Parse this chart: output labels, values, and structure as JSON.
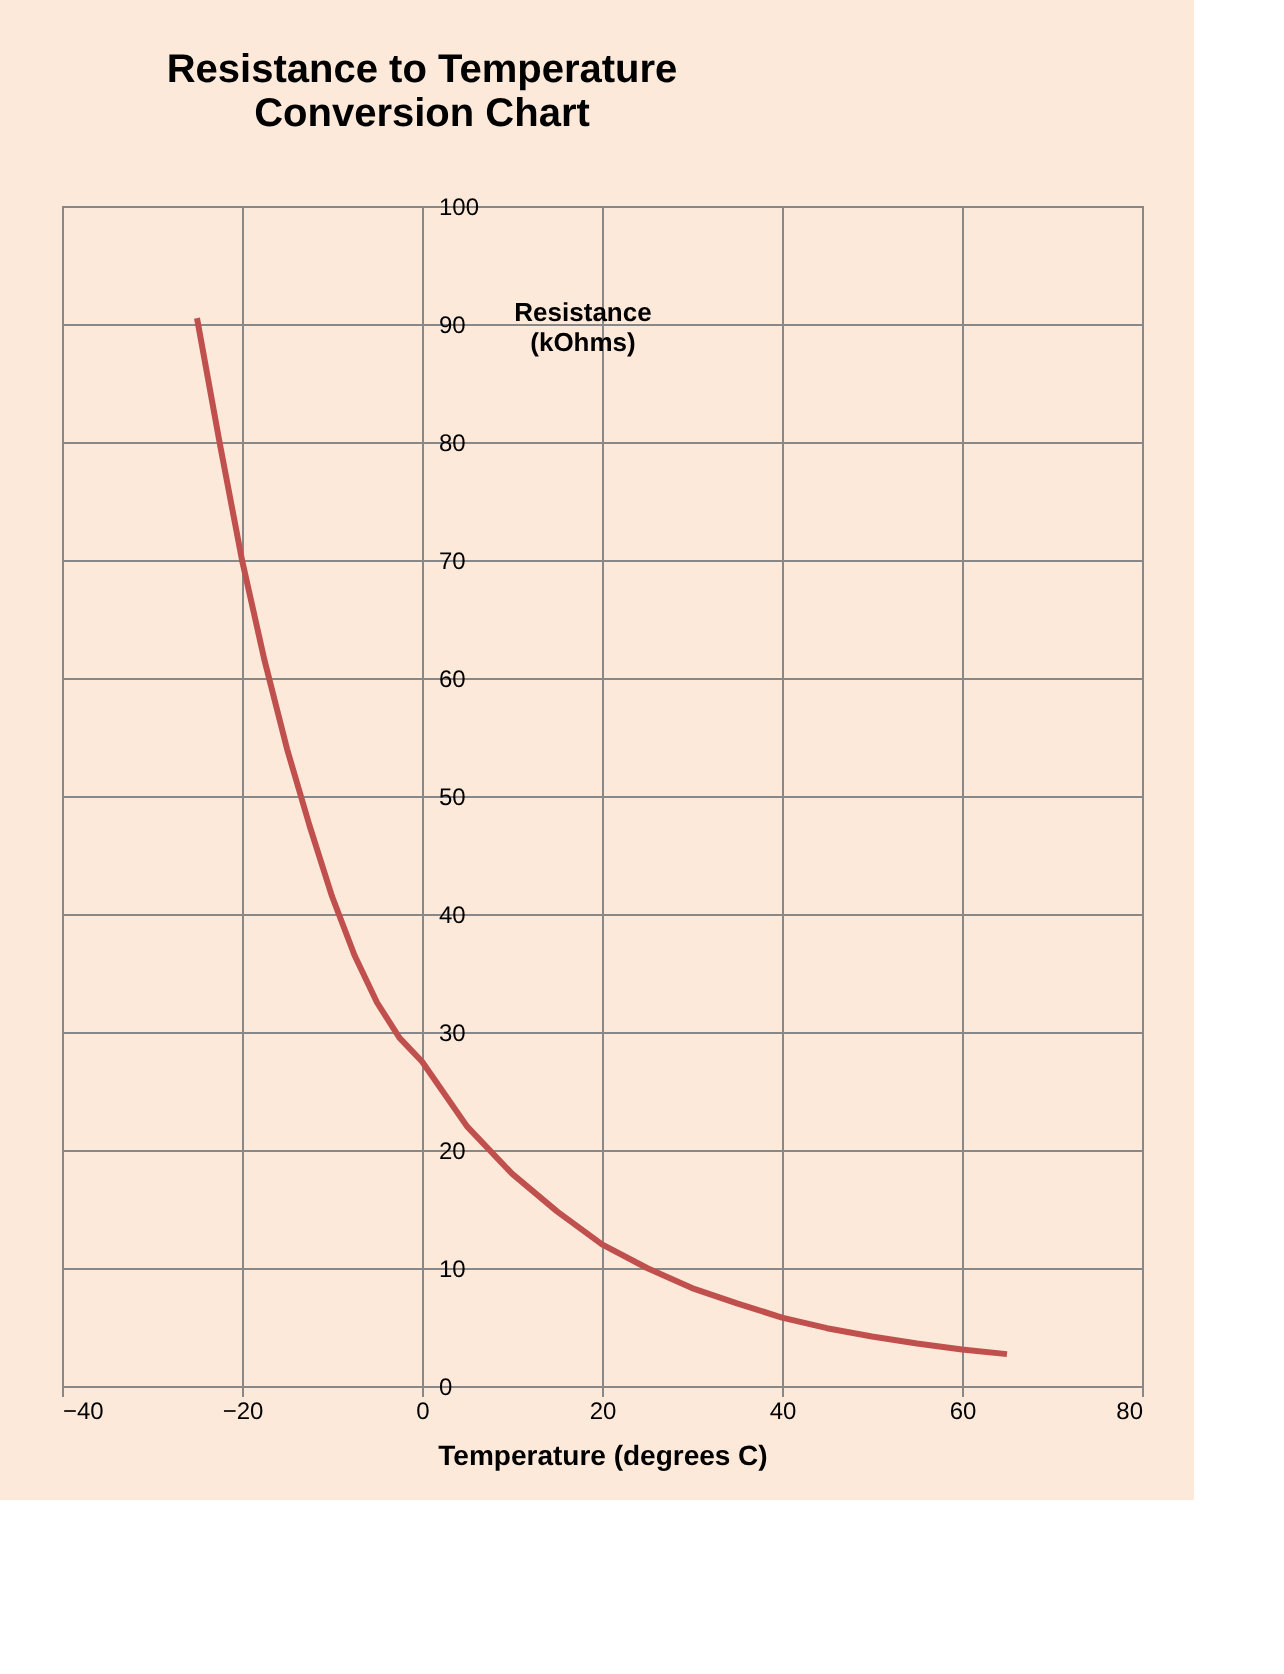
{
  "chart_data": {
    "type": "line",
    "title": "Resistance to Temperature Conversion Chart",
    "xlabel": "Temperature (degrees C)",
    "ylabel": "Resistance (kOhms)",
    "x": [
      -25,
      -22.5,
      -20,
      -17.5,
      -15,
      -12.5,
      -10,
      -7.5,
      -5,
      -2.5,
      0,
      5,
      10,
      15,
      20,
      25,
      30,
      35,
      40,
      45,
      50,
      55,
      60,
      65
    ],
    "series": [
      {
        "color": "#c0504d",
        "values": [
          90.5,
          80,
          70,
          61.5,
          54,
          47.5,
          41.5,
          36.5,
          32.5,
          29.5,
          27.5,
          22,
          18,
          14.8,
          12,
          10,
          8.3,
          7,
          5.8,
          4.9,
          4.2,
          3.6,
          3.1,
          2.7
        ]
      }
    ],
    "xlim": [
      -40,
      80
    ],
    "xticks": [
      -40,
      -20,
      0,
      20,
      40,
      60,
      80
    ],
    "ylim": [
      0,
      100
    ],
    "yticks": [
      0,
      10,
      20,
      30,
      40,
      50,
      60,
      70,
      80,
      90,
      100
    ],
    "grid": true,
    "legend": false,
    "marker": "none",
    "line_style": "solid"
  }
}
